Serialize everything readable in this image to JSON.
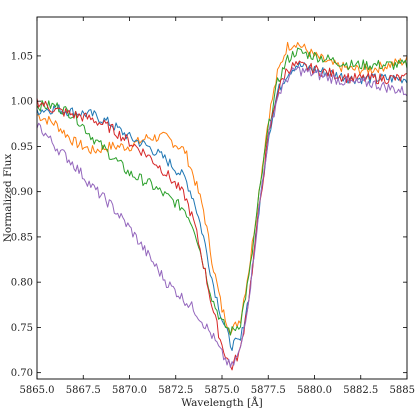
{
  "chart_data": {
    "type": "line",
    "title": "",
    "xlabel": "Wavelength [Å]",
    "ylabel": "Normalized Flux",
    "xlim": [
      5865.0,
      5885.0
    ],
    "ylim": [
      0.693,
      1.093
    ],
    "xticks": [
      5865.0,
      5867.5,
      5870.0,
      5872.5,
      5875.0,
      5877.5,
      5880.0,
      5882.5,
      5885.0
    ],
    "xtick_labels": [
      "5865.0",
      "5867.5",
      "5870.0",
      "5872.5",
      "5875.0",
      "5877.5",
      "5880.0",
      "5882.5",
      "5885.0"
    ],
    "yticks": [
      0.7,
      0.75,
      0.8,
      0.85,
      0.9,
      0.95,
      1.0,
      1.05
    ],
    "ytick_labels": [
      "0.70",
      "0.75",
      "0.80",
      "0.85",
      "0.90",
      "0.95",
      "1.00",
      "1.05"
    ],
    "grid": false,
    "legend": "none",
    "series": [
      {
        "color": "#ff7f0e",
        "x": [
          5865.0,
          5866.0,
          5867.0,
          5868.0,
          5869.0,
          5870.0,
          5871.0,
          5872.0,
          5873.0,
          5873.5,
          5874.0,
          5874.5,
          5875.0,
          5875.5,
          5876.0,
          5876.5,
          5877.0,
          5877.5,
          5878.0,
          5878.5,
          5879.0,
          5880.0,
          5881.0,
          5882.0,
          5883.0,
          5884.0,
          5885.0
        ],
        "y": [
          0.985,
          0.975,
          0.955,
          0.945,
          0.95,
          0.95,
          0.96,
          0.96,
          0.945,
          0.915,
          0.88,
          0.82,
          0.77,
          0.745,
          0.76,
          0.82,
          0.9,
          0.98,
          1.03,
          1.06,
          1.065,
          1.05,
          1.04,
          1.035,
          1.035,
          1.04,
          1.045
        ]
      },
      {
        "color": "#1f77b4",
        "x": [
          5865.0,
          5866.0,
          5867.0,
          5868.0,
          5869.0,
          5870.0,
          5871.0,
          5872.0,
          5873.0,
          5873.5,
          5874.0,
          5874.5,
          5875.0,
          5875.5,
          5876.0,
          5876.5,
          5877.0,
          5877.5,
          5878.0,
          5878.5,
          5879.0,
          5880.0,
          5881.0,
          5882.0,
          5883.0,
          5884.0,
          5885.0
        ],
        "y": [
          0.99,
          0.992,
          0.988,
          0.985,
          0.975,
          0.96,
          0.95,
          0.935,
          0.915,
          0.89,
          0.85,
          0.8,
          0.76,
          0.73,
          0.735,
          0.79,
          0.88,
          0.96,
          1.01,
          1.03,
          1.04,
          1.035,
          1.03,
          1.025,
          1.025,
          1.025,
          1.025
        ]
      },
      {
        "color": "#2ca02c",
        "x": [
          5865.0,
          5866.0,
          5867.0,
          5868.0,
          5869.0,
          5870.0,
          5871.0,
          5872.0,
          5873.0,
          5873.5,
          5874.0,
          5874.5,
          5875.0,
          5875.5,
          5876.0,
          5876.5,
          5877.0,
          5877.5,
          5878.0,
          5878.5,
          5879.0,
          5880.0,
          5881.0,
          5882.0,
          5883.0,
          5884.0,
          5885.0
        ],
        "y": [
          0.995,
          0.995,
          0.985,
          0.96,
          0.94,
          0.92,
          0.91,
          0.895,
          0.88,
          0.86,
          0.82,
          0.78,
          0.755,
          0.745,
          0.755,
          0.81,
          0.895,
          0.97,
          1.02,
          1.045,
          1.055,
          1.05,
          1.045,
          1.04,
          1.04,
          1.04,
          1.04
        ]
      },
      {
        "color": "#d62728",
        "x": [
          5865.0,
          5866.0,
          5867.0,
          5868.0,
          5869.0,
          5870.0,
          5871.0,
          5872.0,
          5873.0,
          5873.5,
          5874.0,
          5874.5,
          5875.0,
          5875.5,
          5876.0,
          5876.5,
          5877.0,
          5877.5,
          5878.0,
          5878.5,
          5879.0,
          5880.0,
          5881.0,
          5882.0,
          5883.0,
          5884.0,
          5885.0
        ],
        "y": [
          1.0,
          0.99,
          0.985,
          0.98,
          0.97,
          0.955,
          0.94,
          0.92,
          0.895,
          0.865,
          0.82,
          0.77,
          0.73,
          0.705,
          0.725,
          0.79,
          0.88,
          0.96,
          1.01,
          1.035,
          1.04,
          1.035,
          1.03,
          1.025,
          1.025,
          1.025,
          1.025
        ]
      },
      {
        "color": "#9467bd",
        "x": [
          5865.0,
          5866.0,
          5867.0,
          5868.0,
          5869.0,
          5870.0,
          5871.0,
          5872.0,
          5873.0,
          5873.5,
          5874.0,
          5874.5,
          5875.0,
          5875.5,
          5876.0,
          5876.5,
          5877.0,
          5877.5,
          5878.0,
          5878.5,
          5879.0,
          5880.0,
          5881.0,
          5882.0,
          5883.0,
          5884.0,
          5885.0
        ],
        "y": [
          0.975,
          0.95,
          0.93,
          0.905,
          0.885,
          0.86,
          0.83,
          0.8,
          0.78,
          0.77,
          0.755,
          0.74,
          0.72,
          0.705,
          0.725,
          0.79,
          0.88,
          0.96,
          1.005,
          1.025,
          1.035,
          1.03,
          1.025,
          1.02,
          1.02,
          1.015,
          1.01
        ]
      }
    ]
  }
}
